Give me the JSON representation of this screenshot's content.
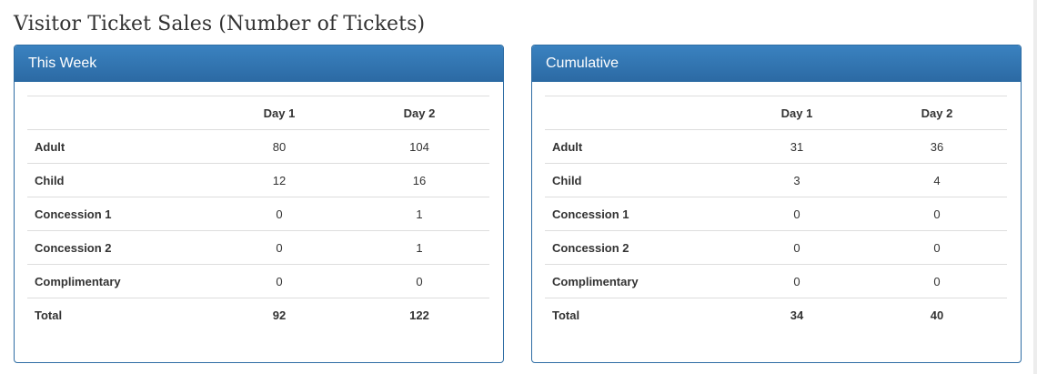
{
  "page": {
    "title": "Visitor Ticket Sales (Number of Tickets)"
  },
  "panels": [
    {
      "title": "This Week",
      "columns": [
        "",
        "Day 1",
        "Day 2"
      ],
      "rows": [
        {
          "label": "Adult",
          "day1": "80",
          "day2": "104"
        },
        {
          "label": "Child",
          "day1": "12",
          "day2": "16"
        },
        {
          "label": "Concession 1",
          "day1": "0",
          "day2": "1"
        },
        {
          "label": "Concession 2",
          "day1": "0",
          "day2": "1"
        },
        {
          "label": "Complimentary",
          "day1": "0",
          "day2": "0"
        },
        {
          "label": "Total",
          "day1": "92",
          "day2": "122"
        }
      ]
    },
    {
      "title": "Cumulative",
      "columns": [
        "",
        "Day 1",
        "Day 2"
      ],
      "rows": [
        {
          "label": "Adult",
          "day1": "31",
          "day2": "36"
        },
        {
          "label": "Child",
          "day1": "3",
          "day2": "4"
        },
        {
          "label": "Concession 1",
          "day1": "0",
          "day2": "0"
        },
        {
          "label": "Concession 2",
          "day1": "0",
          "day2": "0"
        },
        {
          "label": "Complimentary",
          "day1": "0",
          "day2": "0"
        },
        {
          "label": "Total",
          "day1": "34",
          "day2": "40"
        }
      ]
    }
  ],
  "colors": {
    "panel_header": "#337ab7",
    "panel_border": "#2e6da4",
    "row_divider": "#dddddd",
    "text": "#333333"
  }
}
